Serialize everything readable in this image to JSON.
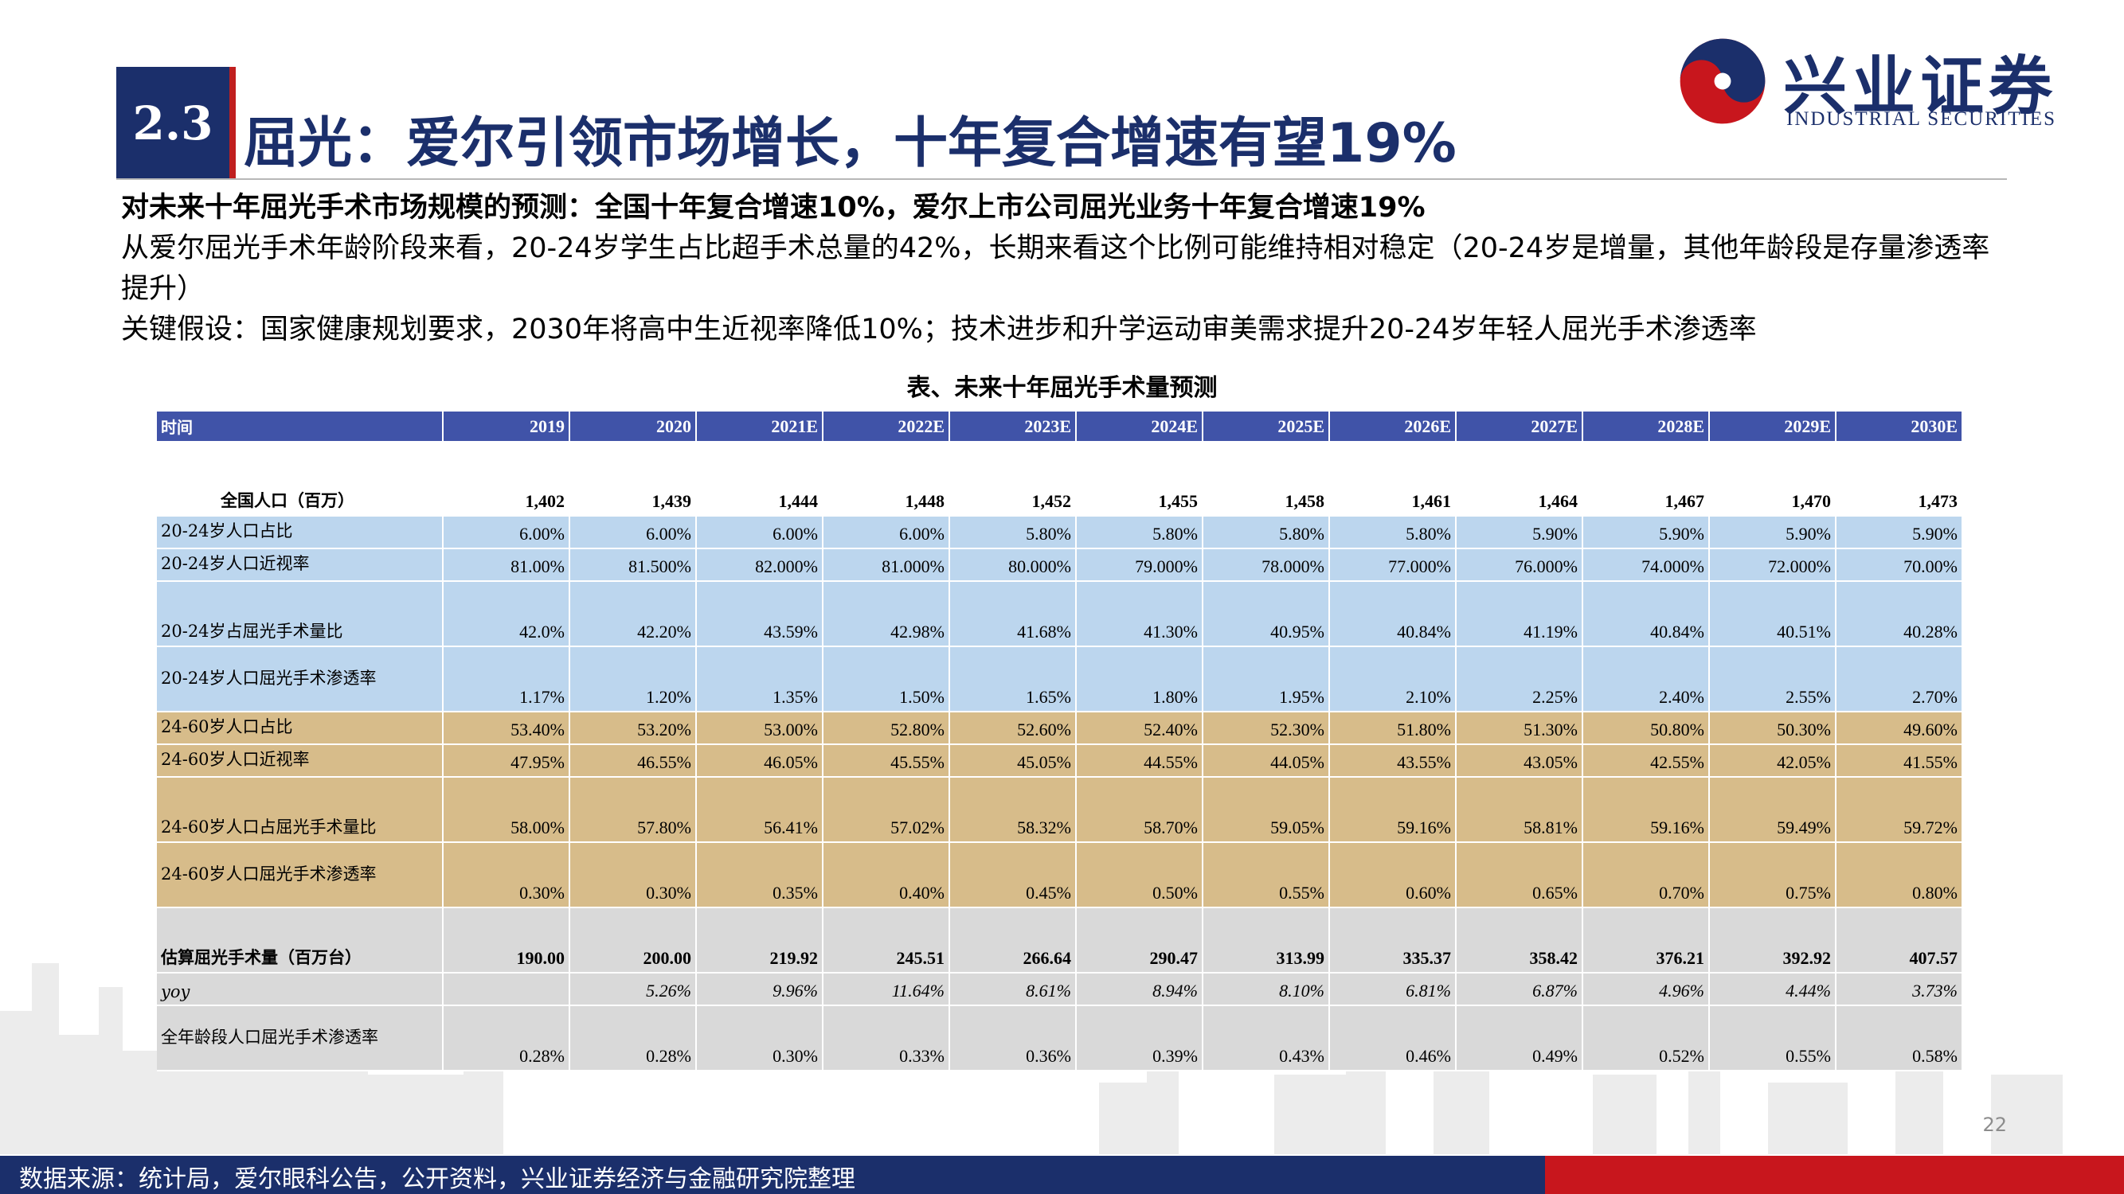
{
  "section": {
    "number": "2.3",
    "title": "屈光：爱尔引领市场增长，十年复合增速有望19%"
  },
  "logo": {
    "name_cn": "兴业证券",
    "name_en": "INDUSTRIAL SECURITIES"
  },
  "intro": {
    "lead": "对未来十年屈光手术市场规模的预测：全国十年复合增速10%，爱尔上市公司屈光业务十年复合增速19%",
    "line1": "从爱尔屈光手术年龄阶段来看，20-24岁学生占比超手术总量的42%，长期来看这个比例可能维持相对稳定（20-24岁是增量，其他年龄段是存量渗透率提升）",
    "line2": "关键假设：国家健康规划要求，2030年将高中生近视率降低10%；技术进步和升学运动审美需求提升20-24岁年轻人屈光手术渗透率"
  },
  "table": {
    "caption": "表、未来十年屈光手术量预测",
    "header": {
      "label": "时间",
      "years": [
        "2019",
        "2020",
        "2021E",
        "2022E",
        "2023E",
        "2024E",
        "2025E",
        "2026E",
        "2027E",
        "2028E",
        "2029E",
        "2030E"
      ]
    },
    "rows": [
      {
        "label": "全国人口（百万）",
        "values": [
          "1,402",
          "1,439",
          "1,444",
          "1,448",
          "1,452",
          "1,455",
          "1,458",
          "1,461",
          "1,464",
          "1,467",
          "1,470",
          "1,473"
        ]
      },
      {
        "label": "20-24岁人口占比",
        "values": [
          "6.00%",
          "6.00%",
          "6.00%",
          "6.00%",
          "5.80%",
          "5.80%",
          "5.80%",
          "5.80%",
          "5.90%",
          "5.90%",
          "5.90%",
          "5.90%"
        ]
      },
      {
        "label": "20-24岁人口近视率",
        "values": [
          "81.00%",
          "81.500%",
          "82.000%",
          "81.000%",
          "80.000%",
          "79.000%",
          "78.000%",
          "77.000%",
          "76.000%",
          "74.000%",
          "72.000%",
          "70.00%"
        ]
      },
      {
        "label": "20-24岁占屈光手术量比",
        "values": [
          "42.0%",
          "42.20%",
          "43.59%",
          "42.98%",
          "41.68%",
          "41.30%",
          "40.95%",
          "40.84%",
          "41.19%",
          "40.84%",
          "40.51%",
          "40.28%"
        ]
      },
      {
        "label": "20-24岁人口屈光手术渗透率",
        "values": [
          "1.17%",
          "1.20%",
          "1.35%",
          "1.50%",
          "1.65%",
          "1.80%",
          "1.95%",
          "2.10%",
          "2.25%",
          "2.40%",
          "2.55%",
          "2.70%"
        ]
      },
      {
        "label": "24-60岁人口占比",
        "values": [
          "53.40%",
          "53.20%",
          "53.00%",
          "52.80%",
          "52.60%",
          "52.40%",
          "52.30%",
          "51.80%",
          "51.30%",
          "50.80%",
          "50.30%",
          "49.60%"
        ]
      },
      {
        "label": "24-60岁人口近视率",
        "values": [
          "47.95%",
          "46.55%",
          "46.05%",
          "45.55%",
          "45.05%",
          "44.55%",
          "44.05%",
          "43.55%",
          "43.05%",
          "42.55%",
          "42.05%",
          "41.55%"
        ]
      },
      {
        "label": "24-60岁人口占屈光手术量比",
        "values": [
          "58.00%",
          "57.80%",
          "56.41%",
          "57.02%",
          "58.32%",
          "58.70%",
          "59.05%",
          "59.16%",
          "58.81%",
          "59.16%",
          "59.49%",
          "59.72%"
        ]
      },
      {
        "label": "24-60岁人口屈光手术渗透率",
        "values": [
          "0.30%",
          "0.30%",
          "0.35%",
          "0.40%",
          "0.45%",
          "0.50%",
          "0.55%",
          "0.60%",
          "0.65%",
          "0.70%",
          "0.75%",
          "0.80%"
        ]
      },
      {
        "label": "估算屈光手术量（百万台）",
        "values": [
          "190.00",
          "200.00",
          "219.92",
          "245.51",
          "266.64",
          "290.47",
          "313.99",
          "335.37",
          "358.42",
          "376.21",
          "392.92",
          "407.57"
        ]
      },
      {
        "label": "yoy",
        "values": [
          "",
          "5.26%",
          "9.96%",
          "11.64%",
          "8.61%",
          "8.94%",
          "8.10%",
          "6.81%",
          "6.87%",
          "4.96%",
          "4.44%",
          "3.73%"
        ]
      },
      {
        "label": "全年龄段人口屈光手术渗透率",
        "values": [
          "0.28%",
          "0.28%",
          "0.30%",
          "0.33%",
          "0.36%",
          "0.39%",
          "0.43%",
          "0.46%",
          "0.49%",
          "0.52%",
          "0.55%",
          "0.58%"
        ]
      }
    ]
  },
  "page_number": "22",
  "footer": {
    "source": "数据来源：统计局，爱尔眼科公告，公开资料，兴业证券经济与金融研究院整理"
  },
  "colors": {
    "navy": "#1b2f6b",
    "red": "#c8161d",
    "header_blue": "#4053a8",
    "row_blue": "#bcd6ee",
    "row_tan": "#d7bc8a",
    "row_grey": "#d9d9d9"
  }
}
